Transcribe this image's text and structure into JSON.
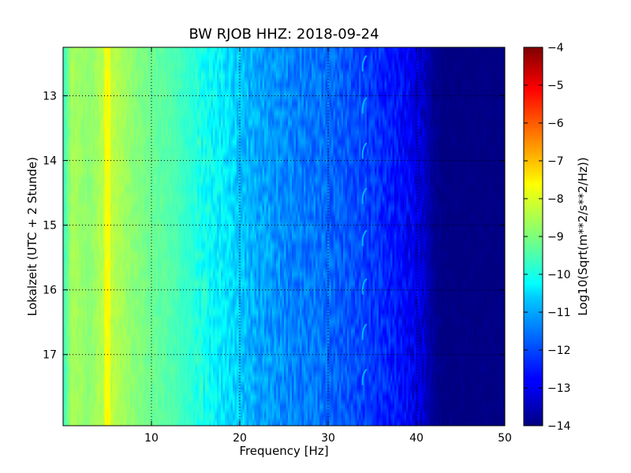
{
  "chart_data": {
    "type": "heatmap",
    "title": "BW RJOB HHZ: 2018-09-24",
    "xlabel": "Frequency [Hz]",
    "ylabel": "Lokalzeit (UTC + 2 Stunde)",
    "xlim": [
      0,
      50
    ],
    "ylim": [
      12.25,
      18.1
    ],
    "y_inverted": true,
    "x_ticks": [
      10,
      20,
      30,
      40,
      50
    ],
    "y_ticks": [
      13,
      14,
      15,
      16,
      17
    ],
    "grid": true,
    "colormap": "jet",
    "colorbar": {
      "label": "Log10(Sqrt(m**2/s**2/Hz))",
      "range": [
        -14,
        -4
      ],
      "ticks": [
        -4,
        -5,
        -6,
        -7,
        -8,
        -9,
        -10,
        -11,
        -12,
        -13,
        -14
      ]
    },
    "spectrum_profile": {
      "frequency_hz": [
        0,
        1,
        3,
        5,
        8,
        10,
        12,
        15,
        18,
        20,
        22,
        25,
        28,
        30,
        33,
        35,
        38,
        40,
        42,
        43,
        44,
        50
      ],
      "log10_amplitude": [
        -9.8,
        -8.6,
        -8.9,
        -8.3,
        -8.9,
        -9.2,
        -9.4,
        -9.9,
        -10.4,
        -10.8,
        -11.1,
        -11.4,
        -11.6,
        -11.7,
        -12.0,
        -12.2,
        -12.6,
        -13.0,
        -13.8,
        -14.0,
        -14.0,
        -14.0
      ]
    },
    "features": [
      {
        "label": "narrow line",
        "frequency_hz": 5.0,
        "log10_amplitude": -7.8
      },
      {
        "label": "recurring event",
        "frequency_hz": 34.0,
        "times": [
          12.5,
          13.15,
          13.85,
          14.55,
          15.2,
          15.95,
          16.65,
          17.35
        ],
        "log10_amplitude": -11.0
      }
    ]
  }
}
